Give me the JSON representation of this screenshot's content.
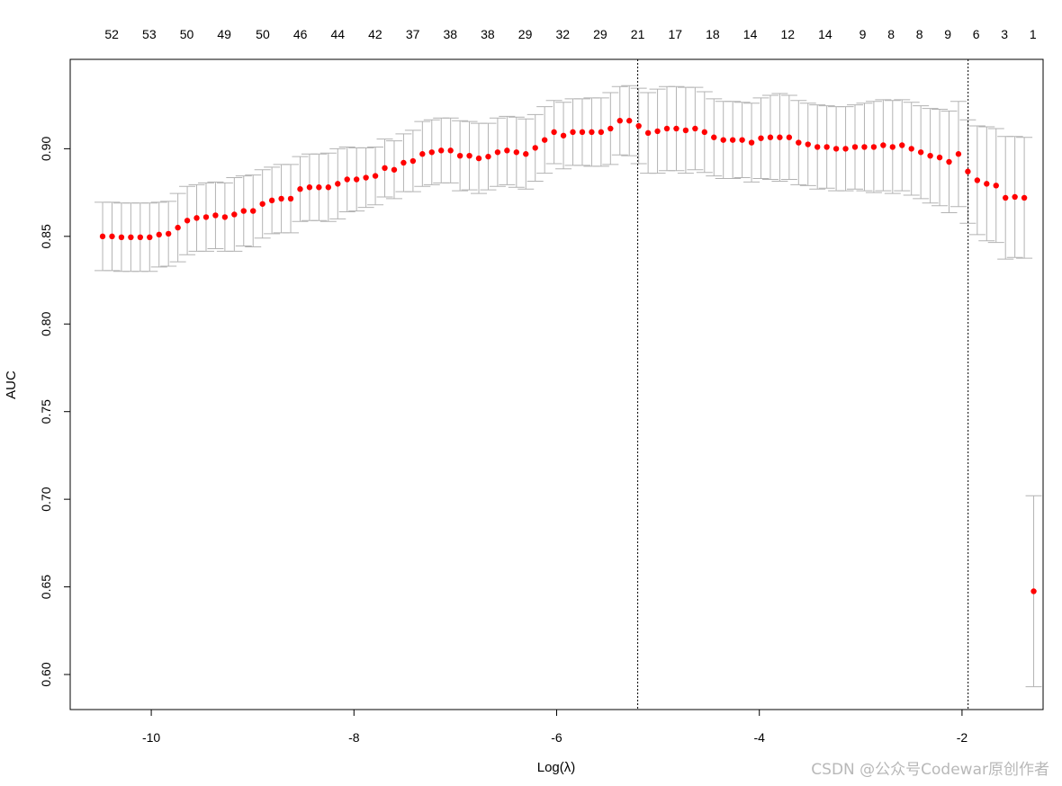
{
  "chart_data": {
    "type": "scatter",
    "xlabel": "Log(λ)",
    "ylabel": "AUC",
    "xlim": [
      -10.8,
      -1.2
    ],
    "ylim": [
      0.58,
      0.951
    ],
    "x_ticks": [
      -10,
      -8,
      -6,
      -4,
      -2
    ],
    "x_tick_labels": [
      "-10",
      "-8",
      "-6",
      "-4",
      "-2"
    ],
    "y_ticks": [
      0.6,
      0.65,
      0.7,
      0.75,
      0.8,
      0.85,
      0.9
    ],
    "y_tick_labels": [
      "0.60",
      "0.65",
      "0.70",
      "0.75",
      "0.80",
      "0.85",
      "0.90"
    ],
    "top_axis_x": [
      -10.39,
      -10.02,
      -9.65,
      -9.28,
      -8.9,
      -8.53,
      -8.16,
      -7.79,
      -7.42,
      -7.05,
      -6.68,
      -6.31,
      -5.94,
      -5.57,
      -5.2,
      -4.83,
      -4.46,
      -4.09,
      -3.72,
      -3.35,
      -2.98,
      -2.7,
      -2.42,
      -2.14,
      -1.86,
      -1.58,
      -1.3
    ],
    "top_axis_labels": [
      "52",
      "53",
      "50",
      "49",
      "50",
      "46",
      "44",
      "42",
      "37",
      "38",
      "38",
      "29",
      "32",
      "29",
      "21",
      "17",
      "18",
      "14",
      "12",
      "14",
      "9",
      "8",
      "8",
      "9",
      "6",
      "3",
      "1"
    ],
    "vlines": [
      -5.2,
      -1.94
    ],
    "points_x_start": -10.48,
    "points_x_step": 0.0928,
    "auc": [
      0.85,
      0.85,
      0.8495,
      0.8495,
      0.8495,
      0.8495,
      0.851,
      0.8515,
      0.855,
      0.859,
      0.8605,
      0.861,
      0.862,
      0.861,
      0.8625,
      0.8645,
      0.8645,
      0.8685,
      0.8705,
      0.8715,
      0.8715,
      0.877,
      0.878,
      0.878,
      0.878,
      0.88,
      0.8825,
      0.8825,
      0.8835,
      0.8845,
      0.889,
      0.888,
      0.892,
      0.893,
      0.897,
      0.898,
      0.899,
      0.899,
      0.896,
      0.896,
      0.8945,
      0.8955,
      0.898,
      0.899,
      0.898,
      0.897,
      0.9005,
      0.905,
      0.9095,
      0.9075,
      0.9095,
      0.9095,
      0.9095,
      0.9095,
      0.9115,
      0.916,
      0.916,
      0.913,
      0.909,
      0.91,
      0.9115,
      0.9115,
      0.9105,
      0.9115,
      0.9095,
      0.9065,
      0.905,
      0.905,
      0.905,
      0.9035,
      0.906,
      0.9065,
      0.9065,
      0.9065,
      0.9035,
      0.9025,
      0.901,
      0.901,
      0.9,
      0.9,
      0.901,
      0.901,
      0.901,
      0.902,
      0.901,
      0.902,
      0.9,
      0.898,
      0.896,
      0.895,
      0.8925,
      0.897,
      0.887,
      0.882,
      0.88,
      0.879,
      0.872,
      0.8725,
      0.872,
      0.6475
    ],
    "auc_upper": [
      0.8695,
      0.8695,
      0.869,
      0.869,
      0.869,
      0.869,
      0.8695,
      0.87,
      0.8745,
      0.8785,
      0.8795,
      0.8805,
      0.881,
      0.8805,
      0.8835,
      0.8845,
      0.885,
      0.888,
      0.8895,
      0.891,
      0.891,
      0.8955,
      0.897,
      0.897,
      0.8975,
      0.9,
      0.901,
      0.9005,
      0.9005,
      0.901,
      0.9055,
      0.9045,
      0.9085,
      0.9105,
      0.9155,
      0.9165,
      0.9175,
      0.9175,
      0.916,
      0.9155,
      0.9145,
      0.9145,
      0.9175,
      0.9185,
      0.918,
      0.917,
      0.9195,
      0.924,
      0.9275,
      0.9265,
      0.9285,
      0.9285,
      0.929,
      0.929,
      0.932,
      0.9355,
      0.936,
      0.9345,
      0.932,
      0.934,
      0.9355,
      0.9355,
      0.935,
      0.935,
      0.9325,
      0.9285,
      0.927,
      0.927,
      0.9265,
      0.926,
      0.929,
      0.9305,
      0.9315,
      0.9305,
      0.9275,
      0.926,
      0.925,
      0.9245,
      0.924,
      0.924,
      0.925,
      0.926,
      0.927,
      0.928,
      0.9275,
      0.928,
      0.9265,
      0.9245,
      0.923,
      0.9225,
      0.9215,
      0.927,
      0.9165,
      0.913,
      0.9125,
      0.9115,
      0.907,
      0.907,
      0.9065,
      0.702
    ],
    "auc_lower": [
      0.8305,
      0.8305,
      0.83,
      0.83,
      0.83,
      0.83,
      0.8325,
      0.833,
      0.8355,
      0.8395,
      0.8415,
      0.8415,
      0.843,
      0.8415,
      0.8415,
      0.8445,
      0.844,
      0.849,
      0.8515,
      0.852,
      0.852,
      0.8585,
      0.859,
      0.859,
      0.8585,
      0.86,
      0.864,
      0.8645,
      0.8665,
      0.868,
      0.8725,
      0.8715,
      0.8755,
      0.8755,
      0.8785,
      0.8795,
      0.8805,
      0.8805,
      0.876,
      0.8765,
      0.8745,
      0.8765,
      0.8785,
      0.8795,
      0.878,
      0.877,
      0.8815,
      0.886,
      0.8915,
      0.8885,
      0.8905,
      0.8905,
      0.89,
      0.89,
      0.891,
      0.8965,
      0.896,
      0.8915,
      0.886,
      0.886,
      0.8875,
      0.8875,
      0.886,
      0.888,
      0.8865,
      0.8845,
      0.883,
      0.883,
      0.8835,
      0.881,
      0.883,
      0.8825,
      0.8815,
      0.8825,
      0.8795,
      0.879,
      0.877,
      0.8775,
      0.876,
      0.876,
      0.877,
      0.876,
      0.875,
      0.876,
      0.8745,
      0.876,
      0.8735,
      0.8715,
      0.869,
      0.8675,
      0.8635,
      0.867,
      0.8575,
      0.851,
      0.8475,
      0.8465,
      0.837,
      0.838,
      0.8375,
      0.593
    ]
  },
  "colors": {
    "point": "#ff0000",
    "errorbar": "#b3b3b3",
    "axis": "#000000",
    "vline": "#000000"
  },
  "watermark": "CSDN @公众号Codewar原创作者"
}
